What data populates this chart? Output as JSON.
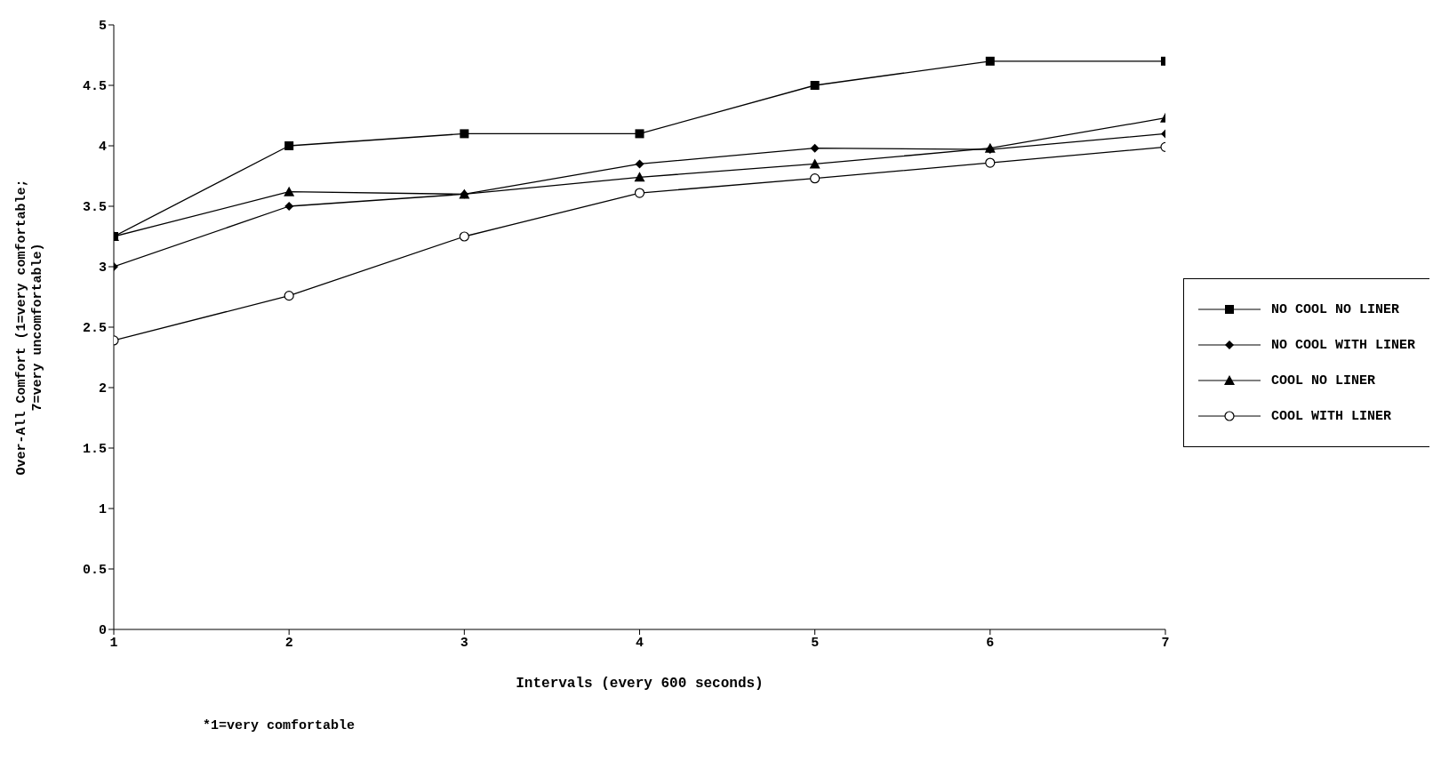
{
  "chart_data": {
    "type": "line",
    "xlabel": "Intervals (every 600 seconds)",
    "ylabel": "Over-All Comfort (1=very comfortable;\n7=very uncomfortable)",
    "x": [
      1,
      2,
      3,
      4,
      5,
      6,
      7
    ],
    "xlim": [
      1,
      7
    ],
    "xticks": [
      1,
      2,
      3,
      4,
      5,
      6,
      7
    ],
    "ylim": [
      0,
      5
    ],
    "yticks": [
      0,
      0.5,
      1,
      1.5,
      2,
      2.5,
      3,
      3.5,
      4,
      4.5,
      5
    ],
    "grid": false,
    "legend": "right",
    "line_style": "solid",
    "annotations": [
      "*1=very comfortable"
    ],
    "series": [
      {
        "name": "NO COOL NO LINER",
        "color": "#000000",
        "marker": "square",
        "values": [
          3.25,
          4.0,
          4.1,
          4.1,
          4.5,
          4.7,
          4.7
        ]
      },
      {
        "name": "NO COOL WITH LINER",
        "color": "#000000",
        "marker": "diamond",
        "values": [
          3.0,
          3.5,
          3.6,
          3.85,
          3.98,
          3.97,
          4.1
        ]
      },
      {
        "name": "COOL NO LINER",
        "color": "#000000",
        "marker": "triangle",
        "values": [
          3.25,
          3.62,
          3.6,
          3.74,
          3.85,
          3.98,
          4.23
        ]
      },
      {
        "name": "COOL WITH LINER",
        "color": "#000000",
        "marker": "circle",
        "values": [
          2.39,
          2.76,
          3.25,
          3.61,
          3.73,
          3.86,
          3.99
        ]
      }
    ]
  }
}
